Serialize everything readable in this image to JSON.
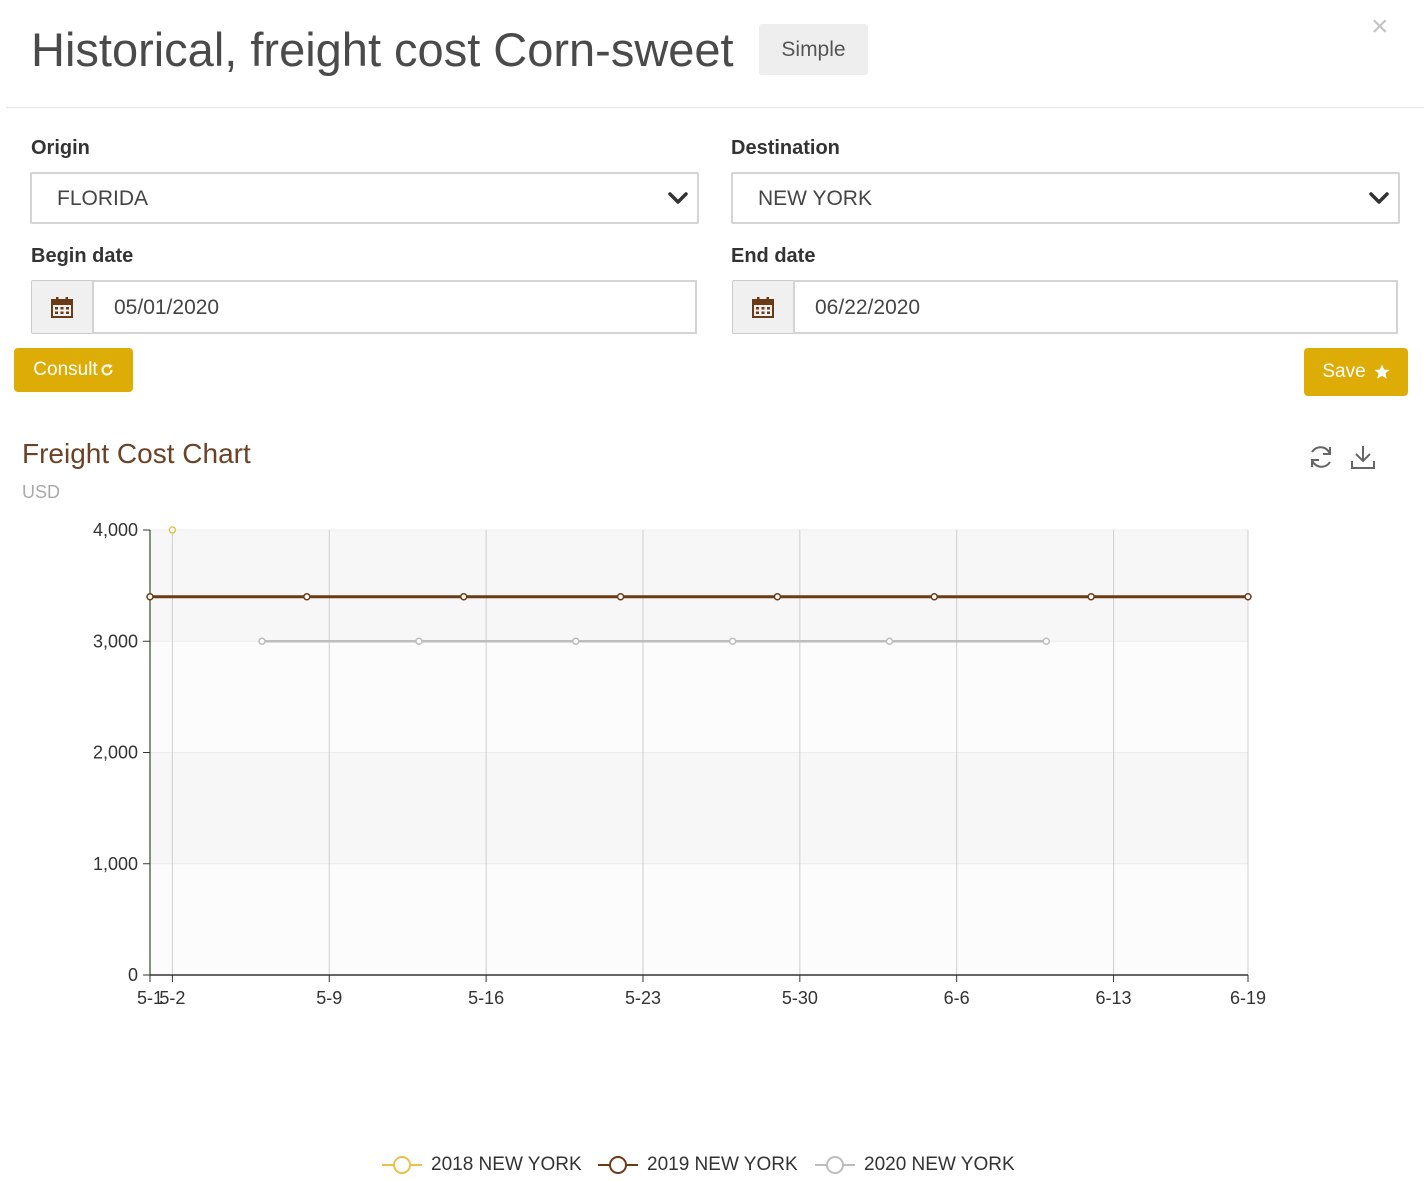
{
  "header": {
    "title": "Historical, freight cost Corn-sweet",
    "mode_badge": "Simple",
    "close_glyph": "×"
  },
  "form": {
    "origin": {
      "label": "Origin",
      "value": "FLORIDA"
    },
    "destination": {
      "label": "Destination",
      "value": "NEW YORK"
    },
    "begin_date": {
      "label": "Begin date",
      "value": "05/01/2020"
    },
    "end_date": {
      "label": "End date",
      "value": "06/22/2020"
    }
  },
  "buttons": {
    "consult": "Consult",
    "save": "Save"
  },
  "icons": {
    "close": "close-icon",
    "select_arrow": "chevron-down-icon",
    "date": "calendar-icon",
    "consult": "refresh-icon",
    "save": "star-icon",
    "chart_refresh": "refresh-icon",
    "chart_download": "download-icon"
  },
  "colors": {
    "accent": "#deac06",
    "title_brown": "#6b4226",
    "series_2018": "#e8c14d",
    "series_2019": "#6b3a17",
    "series_2020": "#bdbdbd"
  },
  "chart_data": {
    "type": "line",
    "title": "Freight Cost Chart",
    "subtitle": "USD",
    "x_tick_labels": [
      "5-1",
      "5-2",
      "5-9",
      "5-16",
      "5-23",
      "5-30",
      "6-6",
      "6-13",
      "6-19"
    ],
    "x_tick_dates": [
      "2020-05-01",
      "2020-05-02",
      "2020-05-09",
      "2020-05-16",
      "2020-05-23",
      "2020-05-30",
      "2020-06-06",
      "2020-06-13",
      "2020-06-19"
    ],
    "xlim": [
      "2020-05-01",
      "2020-06-19"
    ],
    "ylim": [
      0,
      4000
    ],
    "y_ticks": [
      0,
      1000,
      2000,
      3000,
      4000
    ],
    "y_tick_labels": [
      "0",
      "1,000",
      "2,000",
      "3,000",
      "4,000"
    ],
    "grid": true,
    "legend_position": "bottom-center",
    "series": [
      {
        "name": "2018 NEW YORK",
        "x": [
          "2020-05-02"
        ],
        "y": [
          4000
        ]
      },
      {
        "name": "2019 NEW YORK",
        "x": [
          "2020-05-01",
          "2020-05-08",
          "2020-05-15",
          "2020-05-22",
          "2020-05-29",
          "2020-06-05",
          "2020-06-12",
          "2020-06-19"
        ],
        "y": [
          3400,
          3400,
          3400,
          3400,
          3400,
          3400,
          3400,
          3400
        ]
      },
      {
        "name": "2020 NEW YORK",
        "x": [
          "2020-05-06",
          "2020-05-13",
          "2020-05-20",
          "2020-05-27",
          "2020-06-03",
          "2020-06-10"
        ],
        "y": [
          3000,
          3000,
          3000,
          3000,
          3000,
          3000
        ]
      }
    ]
  }
}
